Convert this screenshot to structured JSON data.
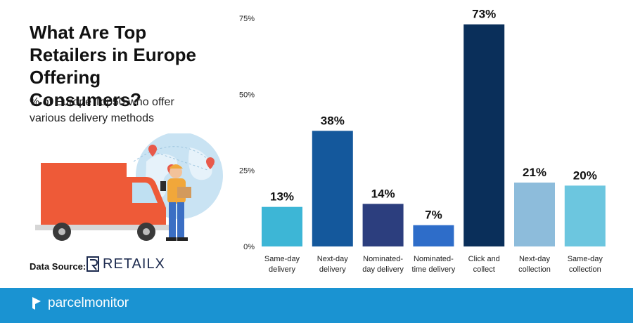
{
  "header": {
    "title_lines": [
      "What Are Top",
      "Retailers in Europe",
      "Offering Consumers?"
    ],
    "subtitle_lines": [
      "% of Europe Top50 who offer",
      "various delivery methods"
    ]
  },
  "source": {
    "label": "Data Source:",
    "logo_text": "RETAILX"
  },
  "footer": {
    "brand": "parcelmonitor"
  },
  "icons": [
    "delivery-truck-illustration",
    "globe-illustration",
    "delivery-person-illustration",
    "map-pin-icon",
    "retailx-logo",
    "parcelmonitor-logo"
  ],
  "colors": {
    "footer": "#1a93d2",
    "bars": [
      "#3db6d6",
      "#14589c",
      "#2c3e7e",
      "#2e6dc9",
      "#0a2f5a",
      "#8dbcdb",
      "#6cc6df"
    ]
  },
  "chart_data": {
    "type": "bar",
    "categories": [
      [
        "Same-day",
        "delivery"
      ],
      [
        "Next-day",
        "delivery"
      ],
      [
        "Nominated-",
        "day delivery"
      ],
      [
        "Nominated-",
        "time delivery"
      ],
      [
        "Click and",
        "collect"
      ],
      [
        "Next-day",
        "collection"
      ],
      [
        "Same-day",
        "collection"
      ]
    ],
    "values": [
      13,
      38,
      14,
      7,
      73,
      21,
      20
    ],
    "data_labels": [
      "13%",
      "38%",
      "14%",
      "7%",
      "73%",
      "21%",
      "20%"
    ],
    "yticks": [
      0,
      25,
      50,
      75
    ],
    "ytick_labels": [
      "0%",
      "25%",
      "50%",
      "75%"
    ],
    "ylim": [
      0,
      75
    ],
    "grid": false
  }
}
